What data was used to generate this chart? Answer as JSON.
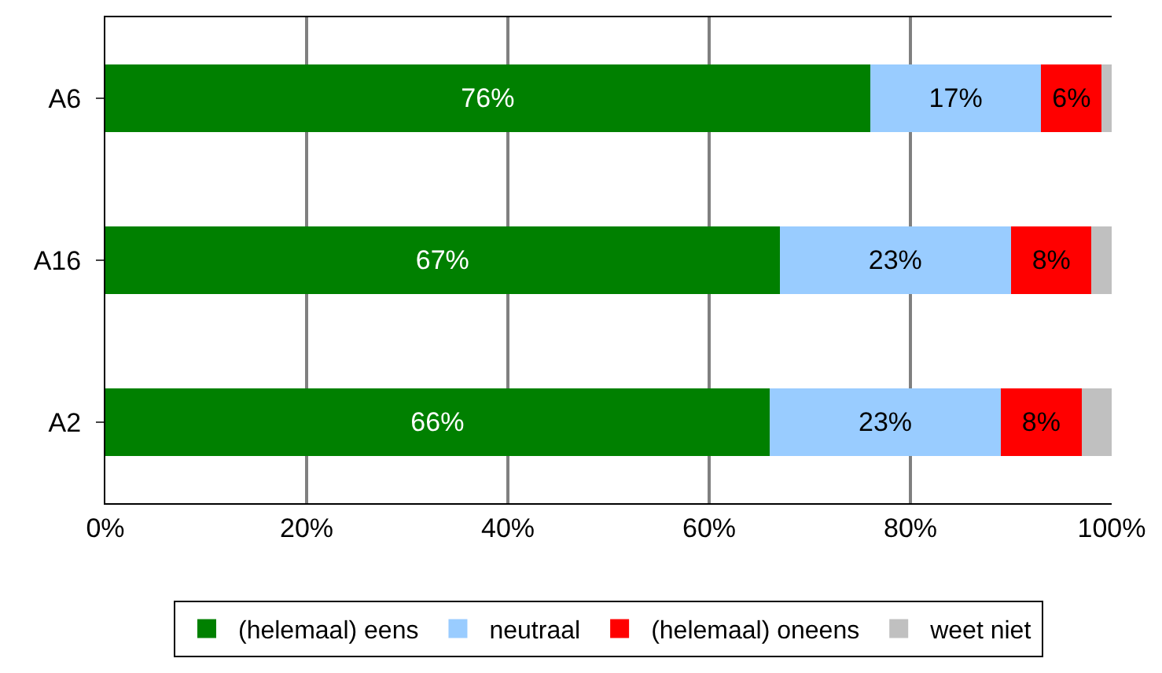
{
  "chart_data": {
    "type": "bar",
    "orientation": "horizontal",
    "stacked": true,
    "categories": [
      "A6",
      "A16",
      "A2"
    ],
    "series": [
      {
        "name": "(helemaal) eens",
        "color": "#008000",
        "values": [
          76,
          67,
          66
        ],
        "value_labels": [
          "76%",
          "67%",
          "66%"
        ]
      },
      {
        "name": "neutraal",
        "color": "#99ccff",
        "values": [
          17,
          23,
          23
        ],
        "value_labels": [
          "17%",
          "23%",
          "23%"
        ]
      },
      {
        "name": "(helemaal) oneens",
        "color": "#ff0000",
        "values": [
          6,
          8,
          8
        ],
        "value_labels": [
          "6%",
          "8%",
          "8%"
        ]
      },
      {
        "name": "weet niet",
        "color": "#c0c0c0",
        "values": [
          1,
          2,
          3
        ],
        "value_labels": [
          null,
          null,
          null
        ]
      }
    ],
    "xlim": [
      0,
      100
    ],
    "xticks": [
      {
        "value": 0,
        "label": "0%"
      },
      {
        "value": 20,
        "label": "20%"
      },
      {
        "value": 40,
        "label": "40%"
      },
      {
        "value": 60,
        "label": "60%"
      },
      {
        "value": 80,
        "label": "80%"
      },
      {
        "value": 100,
        "label": "100%"
      }
    ],
    "grid": "x",
    "legend": "bottom"
  }
}
